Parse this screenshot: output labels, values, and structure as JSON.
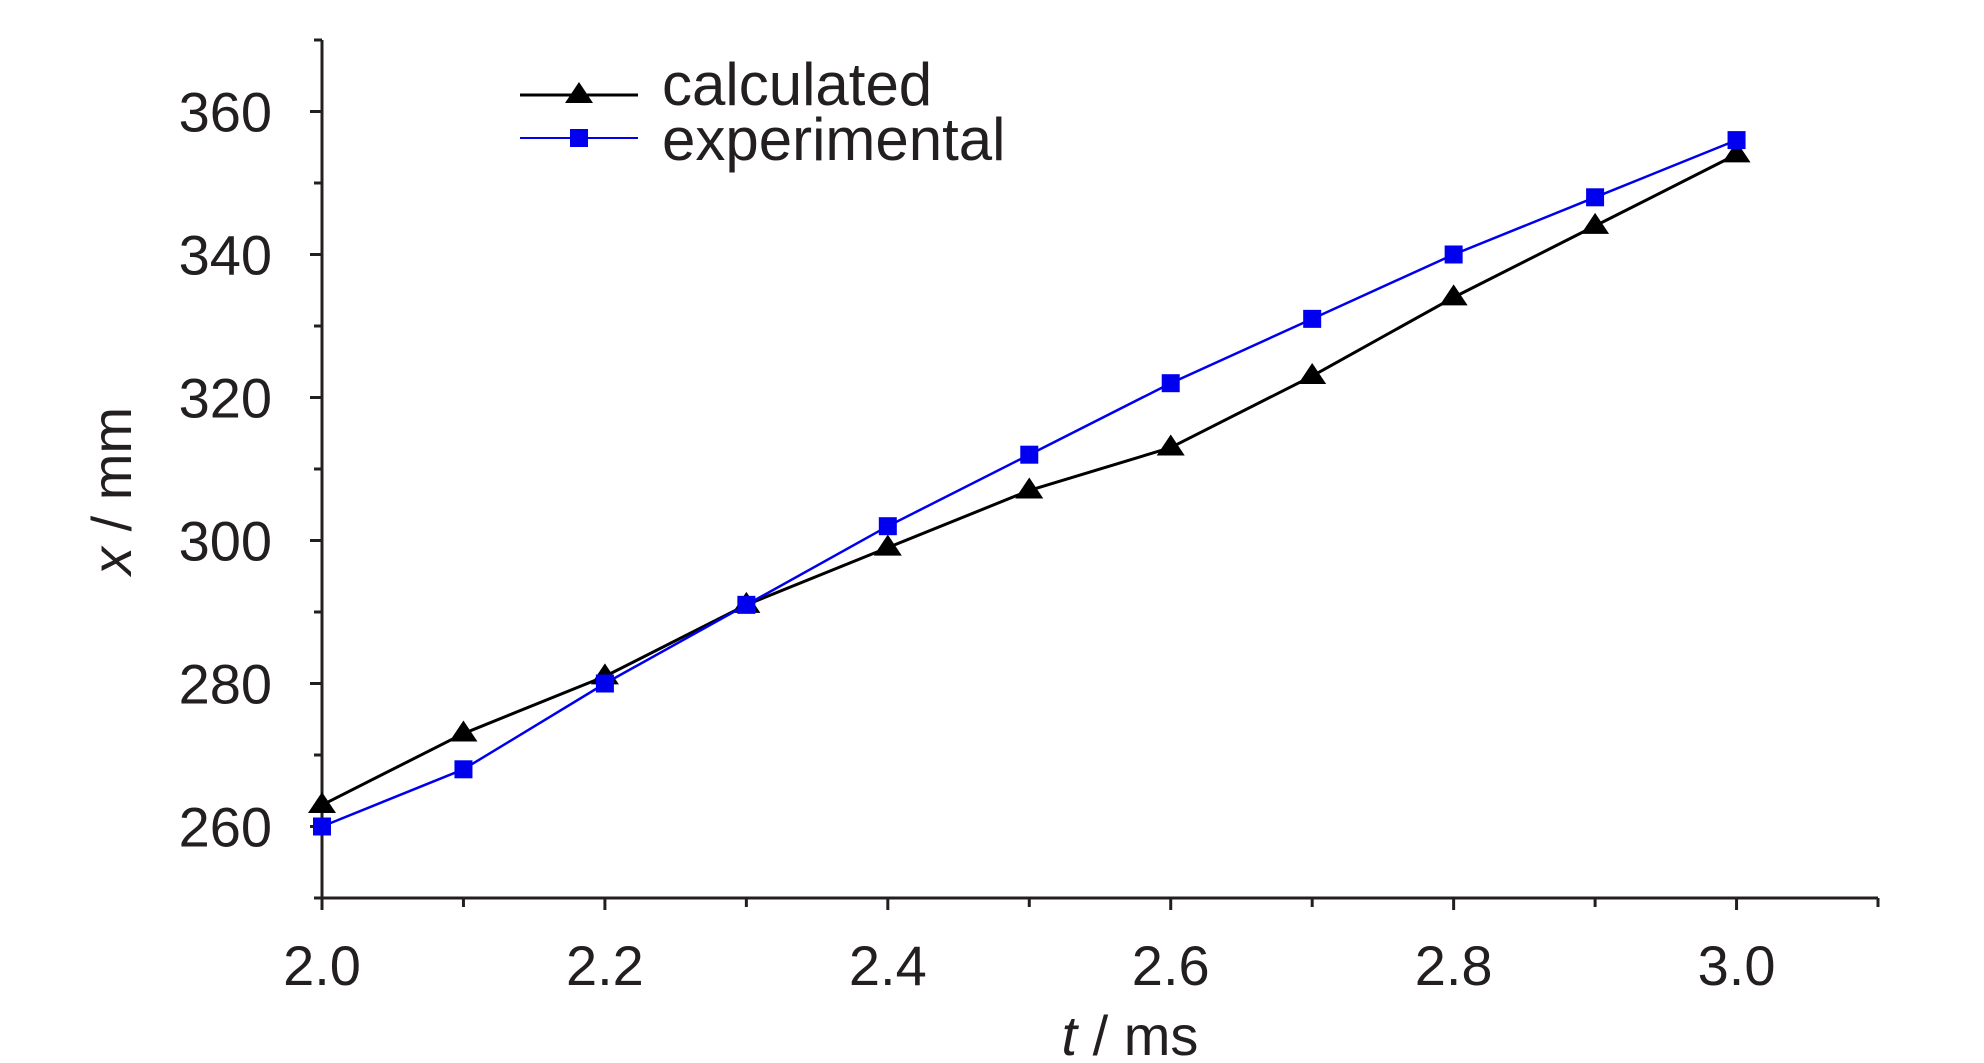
{
  "chart_data": {
    "type": "line",
    "xlabel": {
      "variable": "t",
      "unit": " / ms"
    },
    "ylabel": {
      "variable": "x",
      "unit": " / mm"
    },
    "xlim": [
      2.0,
      3.1
    ],
    "ylim": [
      250,
      370
    ],
    "x_ticks": [
      "2.0",
      "2.2",
      "2.4",
      "2.6",
      "2.8",
      "3.0"
    ],
    "y_ticks": [
      "260",
      "280",
      "300",
      "320",
      "340",
      "360"
    ],
    "grid": false,
    "legend_position": "top-left",
    "x": [
      2.0,
      2.1,
      2.2,
      2.3,
      2.4,
      2.5,
      2.6,
      2.7,
      2.8,
      2.9,
      3.0
    ],
    "series": [
      {
        "name": "calculated",
        "color": "#000000",
        "marker": "triangle",
        "values": [
          263,
          273,
          281,
          291,
          299,
          307,
          313,
          323,
          334,
          344,
          354
        ]
      },
      {
        "name": "experimental",
        "color": "#0000ee",
        "marker": "square",
        "values": [
          260,
          268,
          280,
          291,
          302,
          312,
          322,
          331,
          340,
          348,
          356
        ]
      }
    ]
  }
}
